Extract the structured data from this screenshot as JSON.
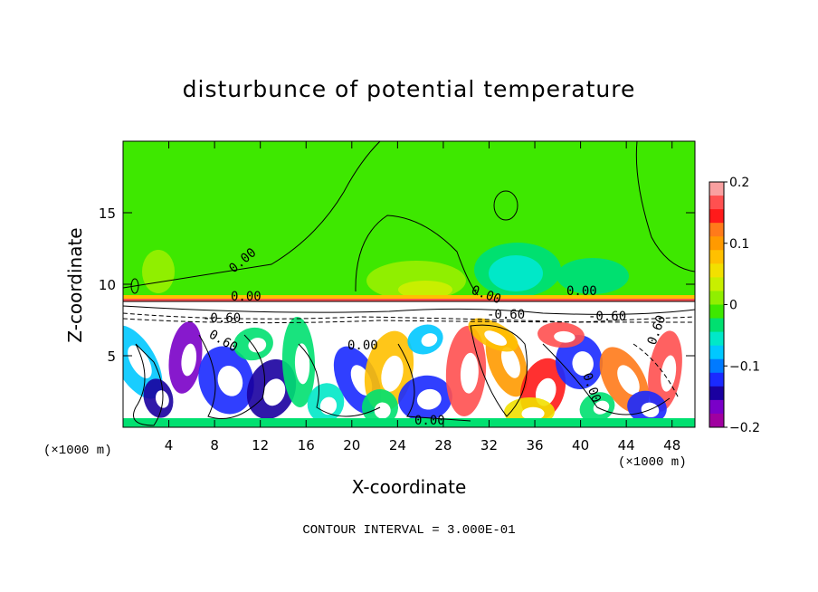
{
  "chart_data": {
    "type": "heatmap",
    "title": "disturbunce of potential temperature",
    "xlabel": "X-coordinate",
    "ylabel": "Z-coordinate",
    "x_unit": "(×1000 m)",
    "z_unit": "(×1000 m)",
    "x_ticks": [
      4,
      8,
      12,
      16,
      20,
      24,
      28,
      32,
      36,
      40,
      44,
      48
    ],
    "z_ticks": [
      5,
      10,
      15
    ],
    "xlim": [
      0,
      50
    ],
    "zlim": [
      0,
      20
    ],
    "colorbar": {
      "ticks": [
        "0.2",
        "0.1",
        "0",
        "−0.1",
        "−0.2"
      ],
      "range": [
        -0.2,
        0.2
      ],
      "colors": [
        "#f9a0a0",
        "#ff5050",
        "#ff1a1a",
        "#ff7a1a",
        "#ff9a00",
        "#ffc000",
        "#f2e000",
        "#c8ef00",
        "#90ef00",
        "#3ee800",
        "#00e070",
        "#00e8c8",
        "#00c8ff",
        "#007aff",
        "#1a2aff",
        "#1a00a0",
        "#7a00c8",
        "#a000a0"
      ]
    },
    "contour_labels": [
      "0.00",
      "0.00",
      "-0.60",
      "0.60",
      "0.00",
      "0.00",
      "-0.60",
      "0.00",
      "-0.60",
      "0.00",
      "0.60",
      "0.00"
    ],
    "annotation": "CONTOUR INTERVAL = 3.000E-01"
  }
}
